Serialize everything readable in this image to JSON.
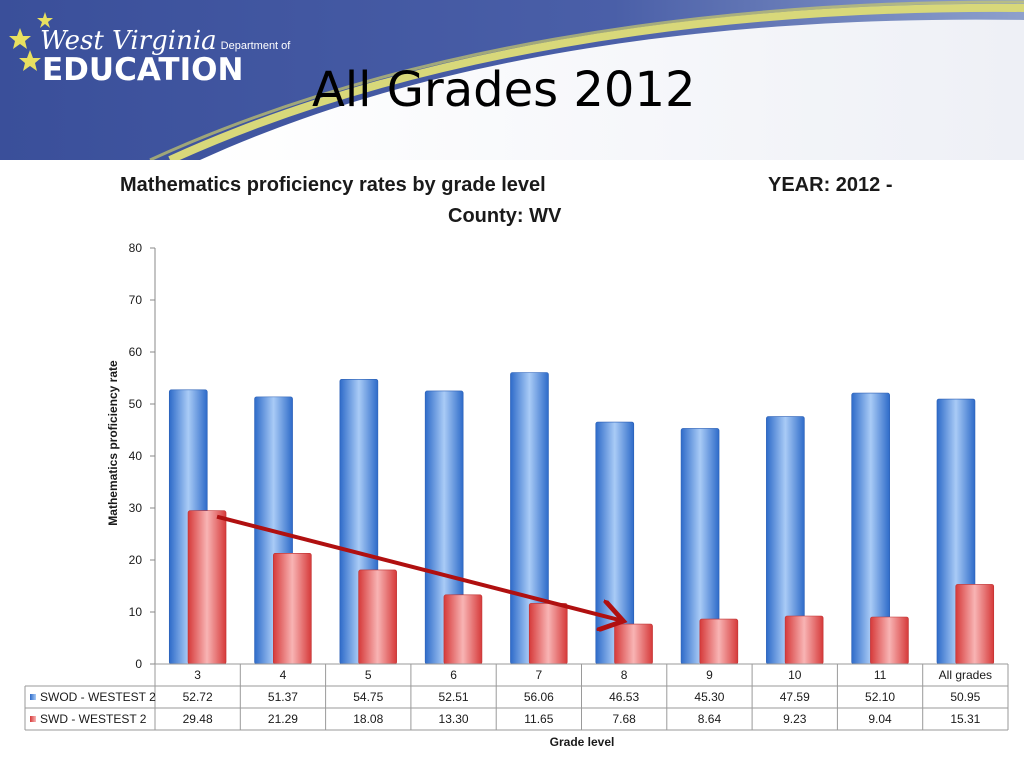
{
  "logo": {
    "line1": "West Virginia",
    "line1_small": "Department of",
    "line2": "EDUCATION"
  },
  "slide_title": "All Grades 2012",
  "colors": {
    "banner": "#3a4f9a",
    "series1": "#4a84d8",
    "series2": "#e04848",
    "arrow": "#b01010"
  },
  "chart_data": {
    "type": "bar",
    "title": "Mathematics proficiency rates by grade level",
    "subtitle": "County: WV",
    "year_label": "YEAR: 2012 -",
    "xlabel": "Grade level",
    "ylabel": "Mathematics proficiency rate",
    "ylim": [
      0,
      80
    ],
    "yticks": [
      "0",
      "10",
      "20",
      "30",
      "40",
      "50",
      "60",
      "70",
      "80"
    ],
    "categories": [
      "3",
      "4",
      "5",
      "6",
      "7",
      "8",
      "9",
      "10",
      "11",
      "All grades"
    ],
    "series": [
      {
        "name": "SWOD - WESTEST 2",
        "values": [
          52.72,
          51.37,
          54.75,
          52.51,
          56.06,
          46.53,
          45.3,
          47.59,
          52.1,
          50.95
        ],
        "labels": [
          "52.72",
          "51.37",
          "54.75",
          "52.51",
          "56.06",
          "46.53",
          "45.30",
          "47.59",
          "52.10",
          "50.95"
        ]
      },
      {
        "name": "SWD - WESTEST 2",
        "values": [
          29.48,
          21.29,
          18.08,
          13.3,
          11.65,
          7.68,
          8.64,
          9.23,
          9.04,
          15.31
        ],
        "labels": [
          "29.48",
          "21.29",
          "18.08",
          "13.30",
          "11.65",
          "7.68",
          "8.64",
          "9.23",
          "9.04",
          "15.31"
        ]
      }
    ],
    "legend": "data-table",
    "annotation": {
      "type": "arrow",
      "from": {
        "category": "3",
        "value": 29.48
      },
      "to": {
        "category": "8",
        "value": 7.68
      }
    },
    "grid": false
  }
}
